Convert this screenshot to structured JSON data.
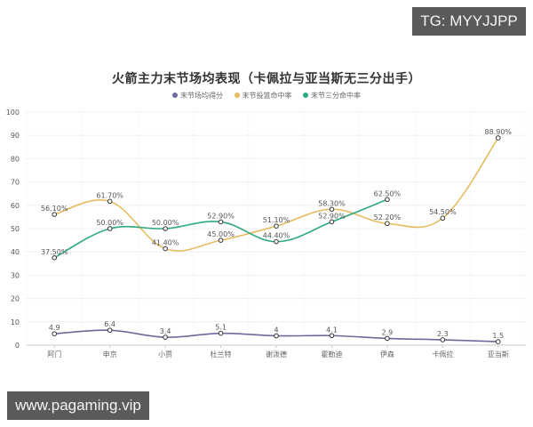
{
  "watermarks": {
    "top_right": "TG: MYYJJPP",
    "bottom_left": "www.pagaming.vip"
  },
  "chart_data": {
    "type": "line",
    "title": "火箭主力末节场均表现（卡佩拉与亚当斯无三分出手）",
    "xlabel": "",
    "ylabel": "",
    "ylim": [
      0,
      100
    ],
    "yticks": [
      0,
      10,
      20,
      30,
      40,
      50,
      60,
      70,
      80,
      90,
      100
    ],
    "grid": true,
    "legend_position": "top",
    "smooth": true,
    "categories": [
      "阿门",
      "申京",
      "小贾",
      "杜兰特",
      "谢泼德",
      "霍勒迪",
      "伊森",
      "卡佩拉",
      "亚当斯"
    ],
    "series": [
      {
        "name": "末节场均得分",
        "color": "#6b6a9a",
        "values": [
          4.9,
          6.4,
          3.4,
          5.1,
          4,
          4.1,
          2.9,
          2.3,
          1.5
        ],
        "labels": [
          "4.9",
          "6.4",
          "3.4",
          "5.1",
          "4",
          "4.1",
          "2.9",
          "2.3",
          "1.5"
        ]
      },
      {
        "name": "末节投篮命中率",
        "color": "#e6bc62",
        "values": [
          56.1,
          61.7,
          41.4,
          45.0,
          51.1,
          58.3,
          52.2,
          54.5,
          88.9
        ],
        "labels": [
          "56.10%",
          "61.70%",
          "41.40%",
          "45.00%",
          "51.10%",
          "58.30%",
          "52.20%",
          "54.50%",
          "88.90%"
        ]
      },
      {
        "name": "末节三分命中率",
        "color": "#2eaa7e",
        "values": [
          37.5,
          50.0,
          50.0,
          52.9,
          44.4,
          52.9,
          62.5,
          null,
          null
        ],
        "labels": [
          "37.50%",
          "50.00%",
          "50.00%",
          "52.90%",
          "44.40%",
          "52.90%",
          "62.50%",
          null,
          null
        ]
      }
    ]
  }
}
